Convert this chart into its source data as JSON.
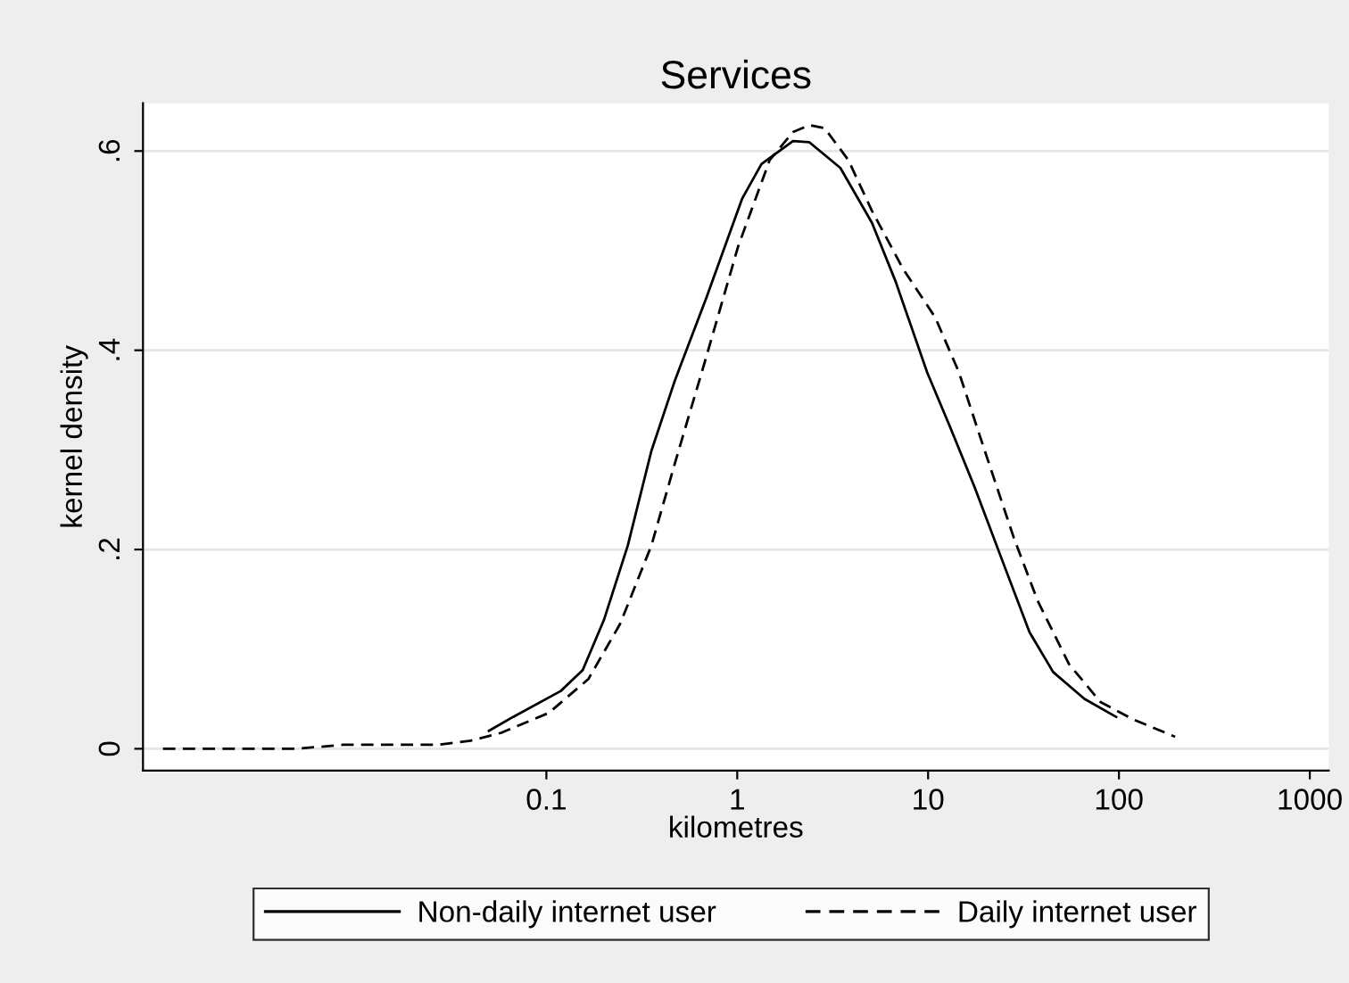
{
  "chart_data": {
    "type": "line",
    "title": "Services",
    "xlabel": "kilometres",
    "ylabel": "kernel density",
    "log": "x",
    "grid": "y",
    "legend": "bottom",
    "xlim": [
      0.00077,
      1257
    ],
    "xticks": [
      0.1,
      1,
      10,
      100,
      1000
    ],
    "ylim": [
      -0.022,
      0.648
    ],
    "yticks": [
      {
        "value": 0,
        "label": "0"
      },
      {
        "value": 0.2,
        "label": ".2"
      },
      {
        "value": 0.4,
        "label": ".4"
      },
      {
        "value": 0.6,
        "label": ".6"
      }
    ],
    "series": [
      {
        "name": "Non-daily internet user",
        "color": "#000000",
        "line_style": "solid",
        "x": [
          0.05,
          0.067,
          0.119,
          0.155,
          0.2,
          0.267,
          0.355,
          0.472,
          0.69,
          1.06,
          1.34,
          1.96,
          2.38,
          3.47,
          5.08,
          6.76,
          9.88,
          13.1,
          17.5,
          25.5,
          34,
          45.2,
          66,
          96.7
        ],
        "values": [
          0.018,
          0.032,
          0.058,
          0.079,
          0.129,
          0.204,
          0.299,
          0.37,
          0.453,
          0.552,
          0.587,
          0.61,
          0.609,
          0.583,
          0.528,
          0.469,
          0.378,
          0.322,
          0.263,
          0.18,
          0.117,
          0.077,
          0.05,
          0.032
        ]
      },
      {
        "name": "Daily internet user",
        "color": "#000000",
        "line_style": "dashed",
        "x": [
          0.00098,
          0.0049,
          0.0087,
          0.0273,
          0.04,
          0.058,
          0.103,
          0.166,
          0.243,
          0.355,
          0.472,
          0.69,
          1.01,
          1.48,
          1.96,
          2.38,
          2.87,
          3.82,
          5.08,
          7.43,
          10.9,
          14.5,
          19.2,
          28.1,
          37.4,
          54.7,
          80,
          117,
          197
        ],
        "values": [
          0,
          0,
          0.004,
          0.004,
          0.008,
          0.016,
          0.036,
          0.07,
          0.125,
          0.204,
          0.287,
          0.394,
          0.504,
          0.591,
          0.619,
          0.626,
          0.623,
          0.591,
          0.54,
          0.481,
          0.433,
          0.378,
          0.307,
          0.212,
          0.149,
          0.085,
          0.047,
          0.03,
          0.012
        ]
      }
    ]
  }
}
